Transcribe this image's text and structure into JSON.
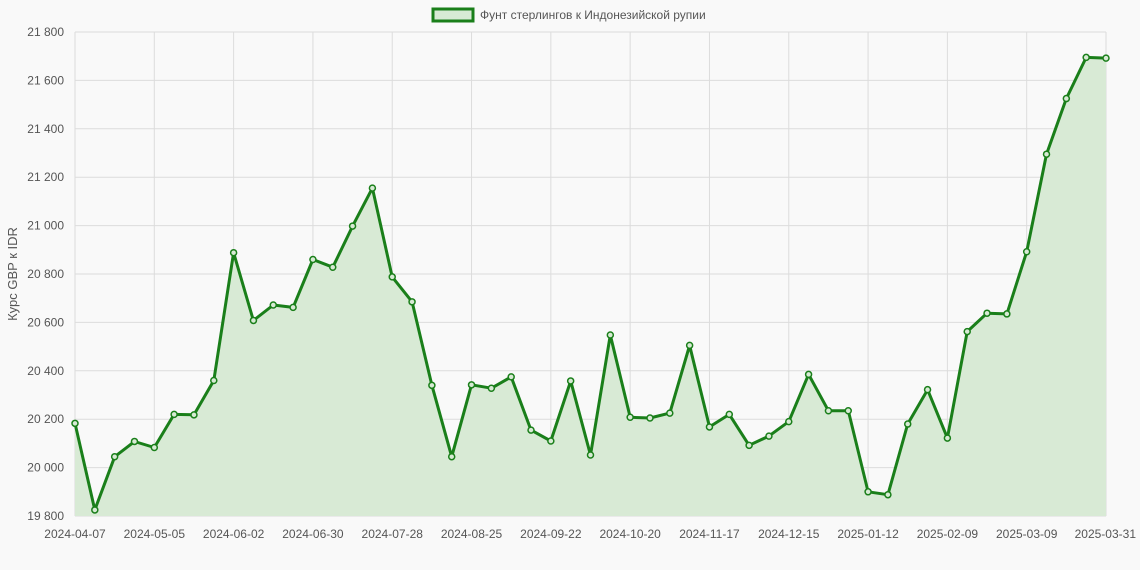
{
  "chart_data": {
    "type": "area",
    "ylabel": "Курс GBP к IDR",
    "ylim": [
      19800,
      21800
    ],
    "ytick_step": 200,
    "ytick_labels": [
      "19 800",
      "20 000",
      "20 200",
      "20 400",
      "20 600",
      "20 800",
      "21 000",
      "21 200",
      "21 400",
      "21 600",
      "21 800"
    ],
    "x_tick_labels": [
      "2024-04-07",
      "2024-05-05",
      "2024-06-02",
      "2024-06-30",
      "2024-07-28",
      "2024-08-25",
      "2024-09-22",
      "2024-10-20",
      "2024-11-17",
      "2024-12-15",
      "2025-01-12",
      "2025-02-09",
      "2025-03-09",
      "2025-03-31"
    ],
    "x_tick_positions": [
      0,
      4,
      8,
      12,
      16,
      20,
      24,
      28,
      32,
      36,
      40,
      44,
      48,
      52
    ],
    "grid": true,
    "legend_position": "top-center",
    "series": [
      {
        "name": "Фунт стерлингов к Индонезийской рупии",
        "color": "#1a7f1a",
        "fill": "#d8ead5",
        "values": [
          20183,
          19825,
          20045,
          20108,
          20083,
          20220,
          20218,
          20360,
          20888,
          20608,
          20672,
          20662,
          20860,
          20828,
          20998,
          21155,
          20788,
          20685,
          20340,
          20045,
          20342,
          20328,
          20375,
          20155,
          20110,
          20358,
          20052,
          20548,
          20208,
          20205,
          20225,
          20505,
          20168,
          20220,
          20092,
          20130,
          20190,
          20385,
          20235,
          20235,
          19900,
          19888,
          20180,
          20322,
          20122,
          20562,
          20638,
          20635,
          20892,
          21295,
          21525,
          21695,
          21692
        ]
      }
    ]
  }
}
